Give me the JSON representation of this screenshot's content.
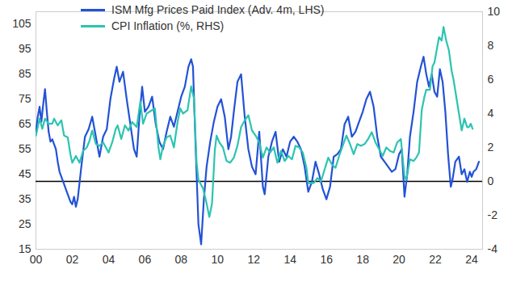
{
  "chart_data": {
    "type": "line",
    "legend": "top-left",
    "grid": false,
    "xlim": [
      2000,
      2024.6
    ],
    "xticks": [
      {
        "value": 2000,
        "label": "00"
      },
      {
        "value": 2002,
        "label": "02"
      },
      {
        "value": 2004,
        "label": "04"
      },
      {
        "value": 2006,
        "label": "06"
      },
      {
        "value": 2008,
        "label": "08"
      },
      {
        "value": 2010,
        "label": "10"
      },
      {
        "value": 2012,
        "label": "12"
      },
      {
        "value": 2014,
        "label": "14"
      },
      {
        "value": 2016,
        "label": "16"
      },
      {
        "value": 2018,
        "label": "18"
      },
      {
        "value": 2020,
        "label": "20"
      },
      {
        "value": 2022,
        "label": "22"
      },
      {
        "value": 2024,
        "label": "24"
      }
    ],
    "ylim": [
      15,
      110
    ],
    "yticks": [
      15,
      25,
      35,
      45,
      55,
      65,
      75,
      85,
      95,
      105
    ],
    "y2lim": [
      -4,
      10
    ],
    "y2ticks": [
      -4,
      -2,
      0,
      2,
      4,
      6,
      8,
      10
    ],
    "hlines": [
      {
        "axis": "y2",
        "value": 0
      }
    ],
    "series": [
      {
        "name": "ISM Mfg Prices Paid Index (Adv. 4m, LHS)",
        "color": "#2352d6",
        "axis": "y",
        "x": [
          2000.0,
          2000.1,
          2000.2,
          2000.3,
          2000.4,
          2000.5,
          2000.6,
          2000.7,
          2000.8,
          2000.9,
          2001.0,
          2001.1,
          2001.2,
          2001.3,
          2001.5,
          2001.7,
          2001.9,
          2002.0,
          2002.1,
          2002.2,
          2002.3,
          2002.5,
          2002.7,
          2002.9,
          2003.1,
          2003.3,
          2003.5,
          2003.7,
          2003.9,
          2004.1,
          2004.3,
          2004.45,
          2004.6,
          2004.8,
          2005.0,
          2005.2,
          2005.4,
          2005.55,
          2005.7,
          2005.85,
          2006.0,
          2006.2,
          2006.4,
          2006.6,
          2006.8,
          2007.0,
          2007.2,
          2007.4,
          2007.6,
          2007.8,
          2008.0,
          2008.2,
          2008.4,
          2008.55,
          2008.65,
          2008.8,
          2008.95,
          2009.1,
          2009.25,
          2009.4,
          2009.6,
          2009.8,
          2010.0,
          2010.2,
          2010.4,
          2010.6,
          2010.75,
          2010.9,
          2011.1,
          2011.3,
          2011.5,
          2011.7,
          2011.9,
          2012.1,
          2012.3,
          2012.5,
          2012.6,
          2012.8,
          2013.0,
          2013.2,
          2013.4,
          2013.6,
          2013.8,
          2014.0,
          2014.2,
          2014.4,
          2014.6,
          2014.8,
          2015.0,
          2015.2,
          2015.4,
          2015.6,
          2015.8,
          2016.0,
          2016.2,
          2016.4,
          2016.6,
          2016.8,
          2017.0,
          2017.2,
          2017.4,
          2017.6,
          2017.8,
          2018.0,
          2018.2,
          2018.4,
          2018.6,
          2018.8,
          2019.0,
          2019.2,
          2019.4,
          2019.6,
          2019.8,
          2020.0,
          2020.15,
          2020.3,
          2020.45,
          2020.6,
          2020.8,
          2021.0,
          2021.2,
          2021.35,
          2021.5,
          2021.65,
          2021.8,
          2021.95,
          2022.1,
          2022.25,
          2022.4,
          2022.55,
          2022.7,
          2022.85,
          2022.95,
          2023.1,
          2023.3,
          2023.45,
          2023.6,
          2023.75,
          2023.9,
          2024.0,
          2024.1,
          2024.25,
          2024.4
        ],
        "values": [
          62,
          68,
          72,
          66,
          73,
          79,
          70,
          62,
          58,
          59,
          57,
          55,
          50,
          46,
          42,
          38,
          34,
          33,
          36,
          32,
          35,
          48,
          60,
          63,
          68,
          60,
          52,
          60,
          63,
          75,
          83,
          88,
          82,
          86,
          75,
          65,
          55,
          52,
          68,
          80,
          70,
          72,
          76,
          65,
          58,
          55,
          62,
          68,
          64,
          70,
          76,
          80,
          88,
          91,
          88,
          55,
          25,
          17,
          35,
          48,
          58,
          66,
          72,
          75,
          68,
          55,
          60,
          70,
          82,
          85,
          68,
          55,
          48,
          45,
          62,
          40,
          37,
          52,
          58,
          62,
          50,
          55,
          52,
          58,
          60,
          58,
          55,
          48,
          38,
          42,
          50,
          45,
          39,
          35,
          40,
          52,
          53,
          55,
          65,
          68,
          60,
          62,
          66,
          70,
          75,
          78,
          72,
          60,
          52,
          50,
          48,
          46,
          47,
          53,
          55,
          36,
          45,
          60,
          70,
          82,
          88,
          92,
          85,
          80,
          85,
          78,
          76,
          87,
          82,
          70,
          53,
          40,
          43,
          50,
          52,
          45,
          47,
          42,
          46,
          44,
          46,
          47,
          50
        ]
      },
      {
        "name": "CPI Inflation (%, RHS)",
        "color": "#2cc4b0",
        "axis": "y2",
        "x": [
          2000.0,
          2000.1,
          2000.2,
          2000.35,
          2000.5,
          2000.7,
          2000.9,
          2001.0,
          2001.2,
          2001.4,
          2001.55,
          2001.75,
          2001.9,
          2002.0,
          2002.2,
          2002.4,
          2002.6,
          2002.8,
          2002.95,
          2003.1,
          2003.3,
          2003.5,
          2003.7,
          2003.9,
          2004.0,
          2004.2,
          2004.4,
          2004.5,
          2004.7,
          2004.9,
          2005.1,
          2005.3,
          2005.55,
          2005.75,
          2005.9,
          2006.1,
          2006.4,
          2006.55,
          2006.75,
          2006.85,
          2007.0,
          2007.2,
          2007.4,
          2007.6,
          2007.8,
          2007.95,
          2008.1,
          2008.35,
          2008.55,
          2008.7,
          2008.85,
          2008.95,
          2009.2,
          2009.4,
          2009.55,
          2009.7,
          2009.85,
          2009.95,
          2010.1,
          2010.3,
          2010.5,
          2010.7,
          2010.9,
          2011.1,
          2011.3,
          2011.5,
          2011.7,
          2011.9,
          2012.1,
          2012.3,
          2012.5,
          2012.7,
          2012.9,
          2013.1,
          2013.3,
          2013.5,
          2013.7,
          2013.9,
          2014.1,
          2014.3,
          2014.5,
          2014.7,
          2014.9,
          2015.0,
          2015.3,
          2015.5,
          2015.7,
          2015.9,
          2016.1,
          2016.3,
          2016.5,
          2016.7,
          2016.9,
          2017.1,
          2017.3,
          2017.5,
          2017.7,
          2017.9,
          2018.1,
          2018.3,
          2018.5,
          2018.7,
          2018.9,
          2019.1,
          2019.3,
          2019.5,
          2019.7,
          2019.9,
          2020.1,
          2020.3,
          2020.4,
          2020.6,
          2020.8,
          2020.95,
          2021.1,
          2021.25,
          2021.4,
          2021.5,
          2021.7,
          2021.85,
          2021.95,
          2022.1,
          2022.2,
          2022.35,
          2022.45,
          2022.6,
          2022.75,
          2022.9,
          2023.0,
          2023.15,
          2023.3,
          2023.45,
          2023.6,
          2023.75,
          2023.85,
          2023.95,
          2024.05
        ],
        "values": [
          2.7,
          3.2,
          3.7,
          3.1,
          3.7,
          3.4,
          3.4,
          3.7,
          3.3,
          3.6,
          2.7,
          2.6,
          1.6,
          1.1,
          1.5,
          1.1,
          1.8,
          2.0,
          2.4,
          3.0,
          2.2,
          2.1,
          2.3,
          1.9,
          1.7,
          2.3,
          3.1,
          3.3,
          2.5,
          3.3,
          3.0,
          3.5,
          3.2,
          4.7,
          3.4,
          4.0,
          4.2,
          4.3,
          2.0,
          1.3,
          2.1,
          2.6,
          2.7,
          2.0,
          3.5,
          4.3,
          4.0,
          4.2,
          5.6,
          4.9,
          1.1,
          0.1,
          -0.4,
          -1.3,
          -2.1,
          -1.3,
          1.8,
          2.7,
          2.3,
          2.0,
          1.2,
          1.1,
          1.4,
          2.1,
          3.2,
          3.6,
          3.9,
          3.0,
          2.7,
          2.3,
          1.4,
          2.0,
          1.7,
          2.0,
          1.1,
          1.8,
          1.2,
          1.5,
          1.3,
          2.1,
          2.0,
          1.7,
          0.8,
          -0.1,
          -0.1,
          0.2,
          0.0,
          0.7,
          1.4,
          1.0,
          0.8,
          1.5,
          2.1,
          2.7,
          2.2,
          1.6,
          2.2,
          2.1,
          2.2,
          2.5,
          2.9,
          2.3,
          1.9,
          1.5,
          2.0,
          1.8,
          1.7,
          2.3,
          2.5,
          0.3,
          0.1,
          1.3,
          1.2,
          1.4,
          1.7,
          4.2,
          5.0,
          5.4,
          5.4,
          6.8,
          7.0,
          7.9,
          8.5,
          8.3,
          9.1,
          8.3,
          7.7,
          6.5,
          6.0,
          5.0,
          4.0,
          3.0,
          3.7,
          3.2,
          3.2,
          3.4,
          3.1
        ]
      }
    ]
  }
}
